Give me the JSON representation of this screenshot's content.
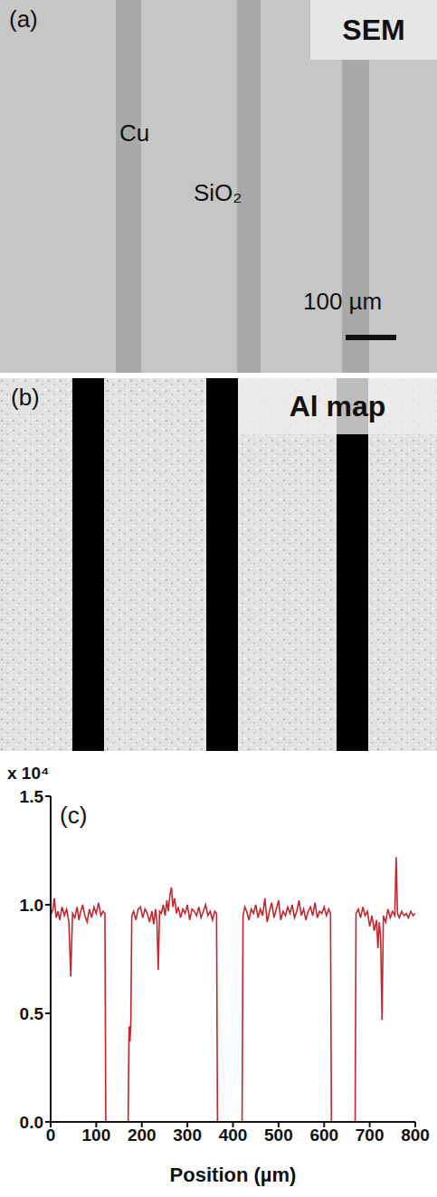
{
  "panel_a": {
    "label": "(a)",
    "title": "SEM",
    "annotations": [
      "Cu",
      "SiO₂"
    ],
    "scale_bar": "100 µm"
  },
  "panel_b": {
    "label": "(b)",
    "title": "Al map"
  },
  "chart_data": {
    "type": "line",
    "label": "(c)",
    "y_multiplier": "x 10⁴",
    "xlabel": "Position (µm)",
    "color": "#c1272d",
    "xlim": [
      0,
      800
    ],
    "xticks": [
      0,
      100,
      200,
      300,
      400,
      500,
      600,
      700,
      800
    ],
    "ylim": [
      0,
      1.5
    ],
    "yticks": [
      {
        "value": 0,
        "label": "0.0"
      },
      0.5,
      {
        "value": 1,
        "label": "1.0"
      },
      1.5
    ],
    "x": [
      0,
      5,
      8,
      12,
      16,
      20,
      25,
      30,
      35,
      40,
      44,
      48,
      53,
      58,
      62,
      66,
      70,
      75,
      80,
      85,
      90,
      95,
      100,
      105,
      110,
      115,
      119,
      121,
      140,
      160,
      170,
      172,
      174,
      176,
      178,
      182,
      187,
      192,
      197,
      202,
      207,
      212,
      217,
      222,
      226,
      230,
      233,
      236,
      239,
      243,
      247,
      251,
      255,
      258,
      262,
      265,
      268,
      272,
      276,
      280,
      285,
      290,
      295,
      300,
      305,
      310,
      315,
      320,
      325,
      330,
      335,
      340,
      345,
      350,
      355,
      360,
      364,
      366,
      390,
      420,
      422,
      426,
      430,
      435,
      440,
      445,
      450,
      455,
      460,
      465,
      470,
      475,
      480,
      485,
      490,
      495,
      500,
      505,
      510,
      515,
      520,
      525,
      530,
      535,
      540,
      545,
      550,
      555,
      560,
      565,
      570,
      575,
      580,
      585,
      590,
      595,
      600,
      605,
      610,
      614,
      616,
      640,
      668,
      670,
      675,
      680,
      685,
      690,
      695,
      700,
      705,
      710,
      715,
      718,
      721,
      724,
      727,
      730,
      735,
      740,
      745,
      750,
      755,
      758,
      761,
      765,
      770,
      775,
      780,
      785,
      790,
      795,
      800
    ],
    "values": [
      0.95,
      0.98,
      1.03,
      0.94,
      0.97,
      0.93,
      0.99,
      0.95,
      0.98,
      0.92,
      0.67,
      0.96,
      0.94,
      0.99,
      0.93,
      0.97,
      1.0,
      0.95,
      0.92,
      0.98,
      0.94,
      0.99,
      0.96,
      1.01,
      0.95,
      0.97,
      0.96,
      0,
      0,
      0,
      0,
      0.44,
      0.37,
      0.47,
      0.95,
      0.97,
      0.93,
      0.98,
      0.99,
      0.94,
      0.98,
      0.96,
      0.92,
      0.97,
      0.91,
      0.98,
      0.93,
      0.7,
      0.97,
      0.96,
      1.0,
      0.95,
      1.02,
      0.97,
      1.05,
      1.08,
      0.99,
      1.03,
      0.96,
      0.99,
      0.94,
      0.98,
      0.96,
      1.0,
      0.93,
      0.98,
      0.97,
      0.95,
      0.99,
      0.94,
      0.97,
      1.0,
      0.95,
      0.97,
      0.93,
      0.97,
      0.96,
      0,
      0,
      0,
      0.95,
      0.99,
      0.97,
      0.93,
      0.98,
      0.96,
      1.0,
      0.94,
      0.98,
      0.95,
      1.03,
      0.92,
      0.97,
      1.01,
      0.94,
      0.98,
      1.02,
      0.93,
      0.97,
      0.95,
      0.99,
      0.96,
      1.0,
      0.94,
      0.97,
      1.02,
      0.95,
      0.98,
      0.93,
      0.97,
      0.99,
      0.95,
      1.01,
      0.94,
      0.97,
      0.96,
      0.99,
      0.95,
      0.98,
      0.96,
      0,
      0,
      0,
      0.96,
      0.98,
      0.94,
      0.99,
      0.95,
      0.97,
      0.9,
      0.95,
      0.88,
      0.93,
      0.8,
      0.92,
      0.85,
      0.47,
      0.95,
      0.92,
      0.98,
      0.94,
      0.97,
      0.95,
      1.22,
      0.96,
      0.94,
      0.97,
      0.95,
      0.96,
      0.94,
      0.97,
      0.95,
      0.96
    ]
  }
}
